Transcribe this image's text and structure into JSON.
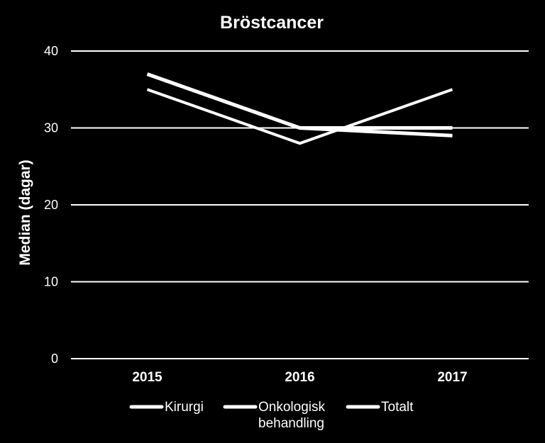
{
  "chart_data": {
    "type": "line",
    "title": "Bröstcancer",
    "xlabel": "",
    "ylabel": "Median (dagar)",
    "categories": [
      "2015",
      "2016",
      "2017"
    ],
    "ylim": [
      0,
      40
    ],
    "yticks": [
      0,
      10,
      20,
      30,
      40
    ],
    "grid": true,
    "legend_position": "bottom",
    "series": [
      {
        "name": "Kirurgi",
        "values": [
          37,
          30,
          29
        ],
        "color": "#ffffff"
      },
      {
        "name": "Onkologisk behandling",
        "name_lines": [
          "Onkologisk",
          "behandling"
        ],
        "values": [
          35,
          28,
          35
        ],
        "color": "#ffffff"
      },
      {
        "name": "Totalt",
        "values": [
          37,
          30,
          30
        ],
        "color": "#ffffff"
      }
    ]
  }
}
